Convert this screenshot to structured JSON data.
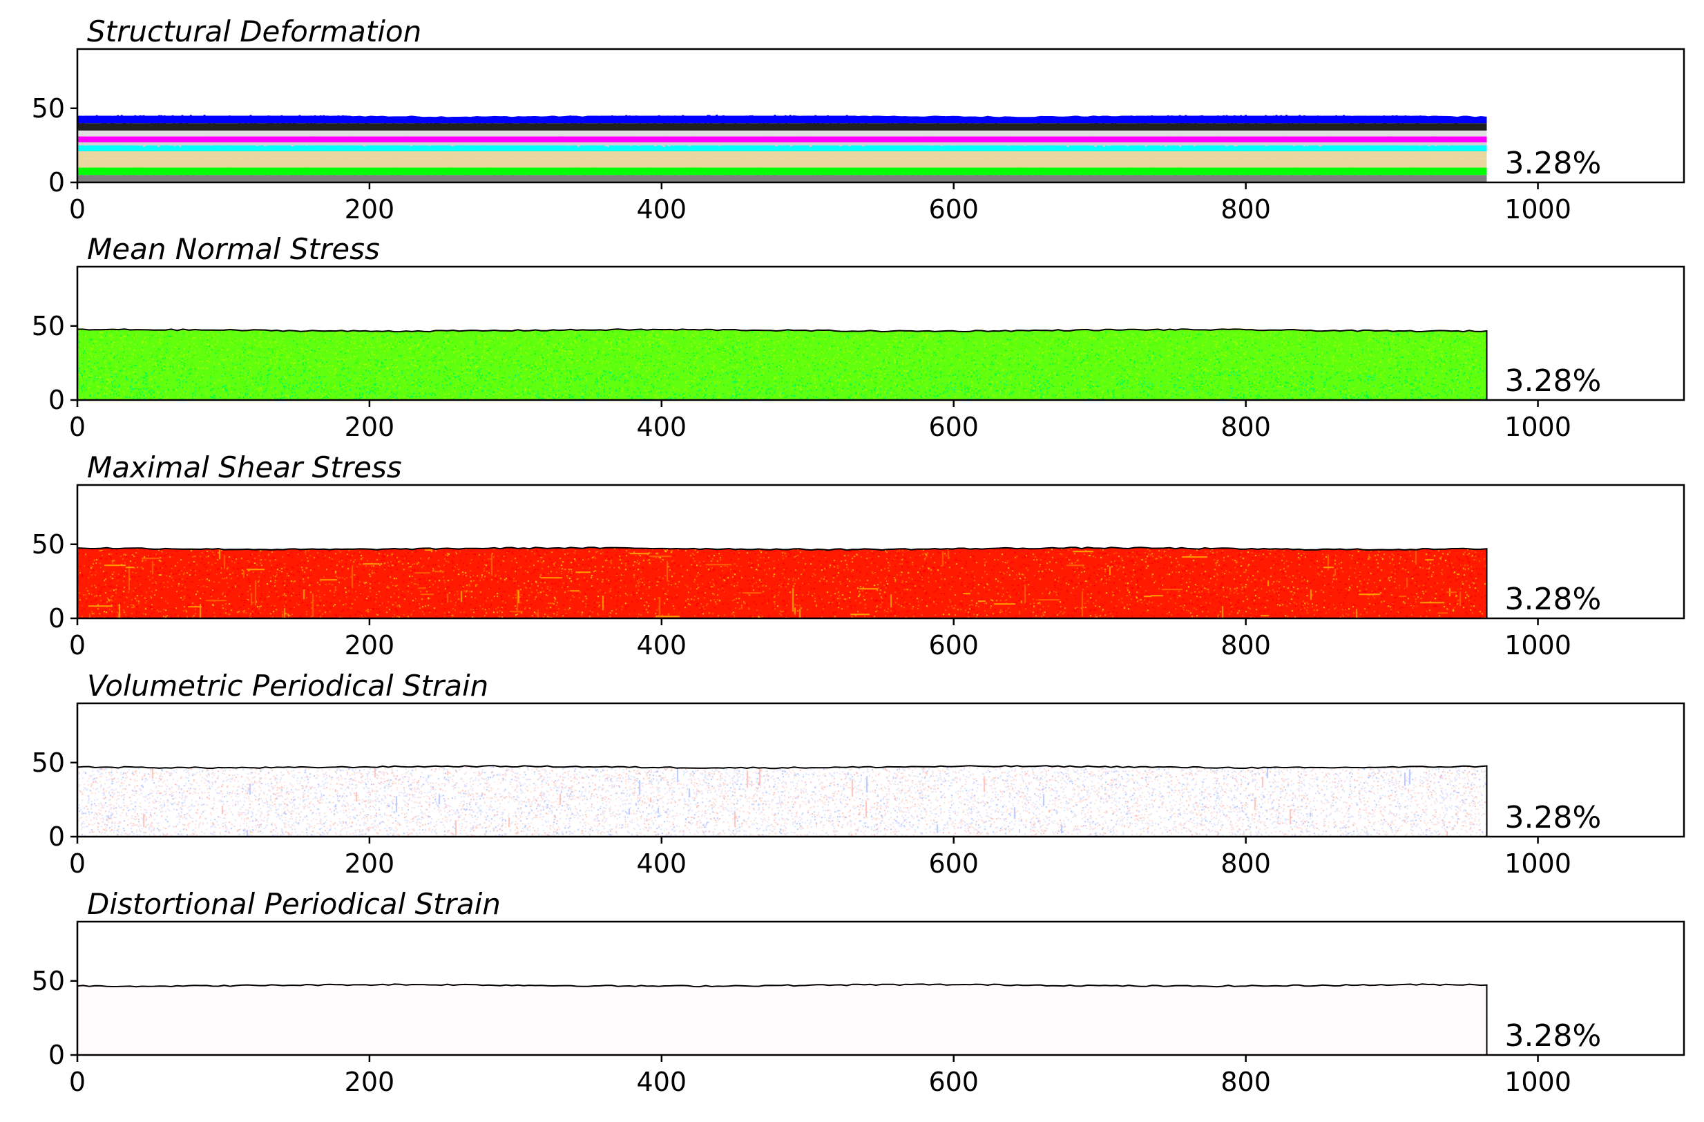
{
  "colors": {
    "deformation_bands": [
      "#808080",
      "#00ff00",
      "#e8d8a0",
      "#00ffff",
      "#d0d0d0",
      "#ff00ff",
      "#e0e0e0",
      "#202020",
      "#0000ff"
    ],
    "mean_normal_stress": [
      "#80ff00",
      "#00ff40",
      "#40ff00",
      "#00ff80",
      "#a0ff00"
    ],
    "maximal_shear_stress": [
      "#ff2000",
      "#ff0000",
      "#ff6000",
      "#ffa000",
      "#ffd000"
    ],
    "volumetric_strain": [
      "#ffffff",
      "#dde4ff",
      "#ffe0dc",
      "#b8c8ff",
      "#ffc0b8"
    ],
    "distortional_strain": [
      "#fffafc"
    ]
  },
  "chart_data": [
    {
      "type": "heatmap",
      "title": "Structural Deformation",
      "xlim": [
        0,
        1100
      ],
      "ylim": [
        0,
        90
      ],
      "xticks": [
        "0",
        "200",
        "400",
        "600",
        "800",
        "1000"
      ],
      "yticks": [
        "0",
        "50"
      ],
      "sample_extent_x": [
        0,
        965
      ],
      "surface_height": 45,
      "annotation": "3.28%",
      "fill": "stratified-color-bands",
      "layers": [
        {
          "y_range": [
            0,
            5
          ],
          "color": "#808080"
        },
        {
          "y_range": [
            5,
            10
          ],
          "color": "#00ff00"
        },
        {
          "y_range": [
            10,
            16
          ],
          "color": "#e8d8a0"
        },
        {
          "y_range": [
            16,
            21
          ],
          "color": "#e8d8a0"
        },
        {
          "y_range": [
            21,
            25
          ],
          "color": "#00ffff"
        },
        {
          "y_range": [
            25,
            27
          ],
          "color": "#d0d0d0"
        },
        {
          "y_range": [
            27,
            31
          ],
          "color": "#ff00ff"
        },
        {
          "y_range": [
            31,
            35
          ],
          "color": "#e0e0e0"
        },
        {
          "y_range": [
            35,
            40
          ],
          "color": "#202020"
        },
        {
          "y_range": [
            40,
            45
          ],
          "color": "#0000ff"
        }
      ]
    },
    {
      "type": "heatmap",
      "title": "Mean Normal Stress",
      "xlim": [
        0,
        1100
      ],
      "ylim": [
        0,
        90
      ],
      "xticks": [
        "0",
        "200",
        "400",
        "600",
        "800",
        "1000"
      ],
      "yticks": [
        "0",
        "50"
      ],
      "sample_extent_x": [
        0,
        965
      ],
      "surface_height": 47,
      "annotation": "3.28%",
      "fill": "noise-green"
    },
    {
      "type": "heatmap",
      "title": "Maximal Shear Stress",
      "xlim": [
        0,
        1100
      ],
      "ylim": [
        0,
        90
      ],
      "xticks": [
        "0",
        "200",
        "400",
        "600",
        "800",
        "1000"
      ],
      "yticks": [
        "0",
        "50"
      ],
      "sample_extent_x": [
        0,
        965
      ],
      "surface_height": 47,
      "annotation": "3.28%",
      "fill": "noise-red"
    },
    {
      "type": "heatmap",
      "title": "Volumetric Periodical Strain",
      "xlim": [
        0,
        1100
      ],
      "ylim": [
        0,
        90
      ],
      "xticks": [
        "0",
        "200",
        "400",
        "600",
        "800",
        "1000"
      ],
      "yticks": [
        "0",
        "50"
      ],
      "sample_extent_x": [
        0,
        965
      ],
      "surface_height": 47,
      "annotation": "3.28%",
      "fill": "noise-diverging"
    },
    {
      "type": "heatmap",
      "title": "Distortional Periodical Strain",
      "xlim": [
        0,
        1100
      ],
      "ylim": [
        0,
        90
      ],
      "xticks": [
        "0",
        "200",
        "400",
        "600",
        "800",
        "1000"
      ],
      "yticks": [
        "0",
        "50"
      ],
      "sample_extent_x": [
        0,
        965
      ],
      "surface_height": 47,
      "annotation": "3.28%",
      "fill": "flat"
    }
  ]
}
